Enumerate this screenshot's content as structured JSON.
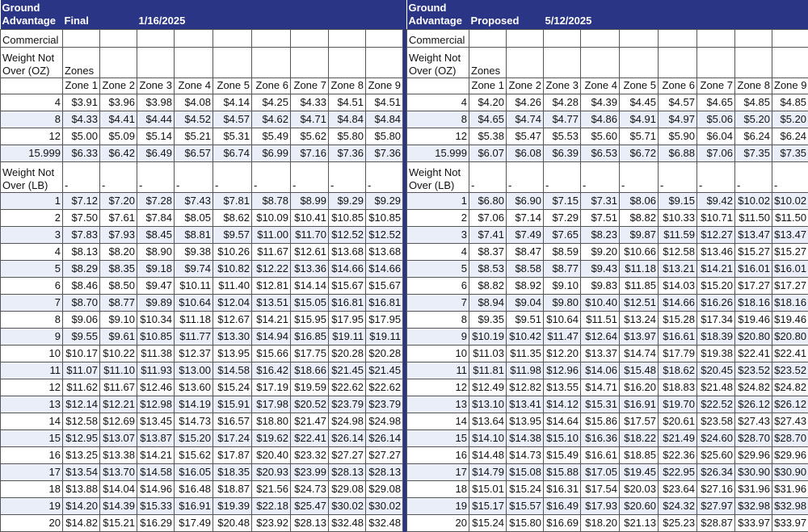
{
  "tables": [
    {
      "title": "Ground Advantage",
      "status": "Final",
      "date": "1/16/2025",
      "commercial": "Commercial",
      "weight_oz_label": "Weight Not Over (OZ)",
      "zones_label": "Zones",
      "zones": [
        "Zone 1",
        "Zone 2",
        "Zone 3",
        "Zone 4",
        "Zone 5",
        "Zone 6",
        "Zone 7",
        "Zone 8",
        "Zone 9"
      ],
      "oz_rows": [
        {
          "weight": 4,
          "prices": [
            "$3.91",
            "$3.96",
            "$3.98",
            "$4.08",
            "$4.14",
            "$4.25",
            "$4.33",
            "$4.51",
            "$4.51"
          ]
        },
        {
          "weight": 8,
          "prices": [
            "$4.33",
            "$4.41",
            "$4.44",
            "$4.52",
            "$4.57",
            "$4.62",
            "$4.71",
            "$4.84",
            "$4.84"
          ]
        },
        {
          "weight": 12,
          "prices": [
            "$5.00",
            "$5.09",
            "$5.14",
            "$5.21",
            "$5.31",
            "$5.49",
            "$5.62",
            "$5.80",
            "$5.80"
          ]
        },
        {
          "weight": 15.999,
          "prices": [
            "$6.33",
            "$6.42",
            "$6.49",
            "$6.57",
            "$6.74",
            "$6.99",
            "$7.16",
            "$7.36",
            "$7.36"
          ]
        }
      ],
      "weight_lb_label": "Weight Not Over (LB)",
      "lb_dashes": [
        "-",
        "-",
        "-",
        "-",
        "-",
        "-",
        "-",
        "-",
        "-"
      ],
      "lb_rows": [
        {
          "weight": 1,
          "prices": [
            "$7.12",
            "$7.20",
            "$7.28",
            "$7.43",
            "$7.81",
            "$8.78",
            "$8.99",
            "$9.29",
            "$9.29"
          ]
        },
        {
          "weight": 2,
          "prices": [
            "$7.50",
            "$7.61",
            "$7.84",
            "$8.05",
            "$8.62",
            "$10.09",
            "$10.41",
            "$10.85",
            "$10.85"
          ]
        },
        {
          "weight": 3,
          "prices": [
            "$7.83",
            "$7.93",
            "$8.45",
            "$8.81",
            "$9.57",
            "$11.00",
            "$11.70",
            "$12.52",
            "$12.52"
          ]
        },
        {
          "weight": 4,
          "prices": [
            "$8.13",
            "$8.20",
            "$8.90",
            "$9.38",
            "$10.26",
            "$11.67",
            "$12.61",
            "$13.68",
            "$13.68"
          ]
        },
        {
          "weight": 5,
          "prices": [
            "$8.29",
            "$8.35",
            "$9.18",
            "$9.74",
            "$10.82",
            "$12.22",
            "$13.36",
            "$14.66",
            "$14.66"
          ]
        },
        {
          "weight": 6,
          "prices": [
            "$8.46",
            "$8.50",
            "$9.47",
            "$10.11",
            "$11.40",
            "$12.81",
            "$14.14",
            "$15.67",
            "$15.67"
          ]
        },
        {
          "weight": 7,
          "prices": [
            "$8.70",
            "$8.77",
            "$9.89",
            "$10.64",
            "$12.04",
            "$13.51",
            "$15.05",
            "$16.81",
            "$16.81"
          ]
        },
        {
          "weight": 8,
          "prices": [
            "$9.06",
            "$9.10",
            "$10.34",
            "$11.18",
            "$12.67",
            "$14.21",
            "$15.95",
            "$17.95",
            "$17.95"
          ]
        },
        {
          "weight": 9,
          "prices": [
            "$9.55",
            "$9.61",
            "$10.85",
            "$11.77",
            "$13.30",
            "$14.94",
            "$16.85",
            "$19.11",
            "$19.11"
          ]
        },
        {
          "weight": 10,
          "prices": [
            "$10.17",
            "$10.22",
            "$11.38",
            "$12.37",
            "$13.95",
            "$15.66",
            "$17.75",
            "$20.28",
            "$20.28"
          ]
        },
        {
          "weight": 11,
          "prices": [
            "$11.07",
            "$11.10",
            "$11.93",
            "$13.00",
            "$14.58",
            "$16.42",
            "$18.66",
            "$21.45",
            "$21.45"
          ]
        },
        {
          "weight": 12,
          "prices": [
            "$11.62",
            "$11.67",
            "$12.46",
            "$13.60",
            "$15.24",
            "$17.19",
            "$19.59",
            "$22.62",
            "$22.62"
          ]
        },
        {
          "weight": 13,
          "prices": [
            "$12.14",
            "$12.21",
            "$12.98",
            "$14.19",
            "$15.91",
            "$17.98",
            "$20.52",
            "$23.79",
            "$23.79"
          ]
        },
        {
          "weight": 14,
          "prices": [
            "$12.58",
            "$12.69",
            "$13.45",
            "$14.73",
            "$16.57",
            "$18.80",
            "$21.47",
            "$24.98",
            "$24.98"
          ]
        },
        {
          "weight": 15,
          "prices": [
            "$12.95",
            "$13.07",
            "$13.87",
            "$15.20",
            "$17.24",
            "$19.62",
            "$22.41",
            "$26.14",
            "$26.14"
          ]
        },
        {
          "weight": 16,
          "prices": [
            "$13.25",
            "$13.38",
            "$14.21",
            "$15.62",
            "$17.87",
            "$20.40",
            "$23.32",
            "$27.27",
            "$27.27"
          ]
        },
        {
          "weight": 17,
          "prices": [
            "$13.54",
            "$13.70",
            "$14.58",
            "$16.05",
            "$18.35",
            "$20.93",
            "$23.99",
            "$28.13",
            "$28.13"
          ]
        },
        {
          "weight": 18,
          "prices": [
            "$13.88",
            "$14.04",
            "$14.96",
            "$16.48",
            "$18.87",
            "$21.56",
            "$24.73",
            "$29.08",
            "$29.08"
          ]
        },
        {
          "weight": 19,
          "prices": [
            "$14.20",
            "$14.39",
            "$15.33",
            "$16.91",
            "$19.39",
            "$22.18",
            "$25.47",
            "$30.02",
            "$30.02"
          ]
        },
        {
          "weight": 20,
          "prices": [
            "$14.82",
            "$15.21",
            "$16.29",
            "$17.49",
            "$20.48",
            "$23.92",
            "$28.13",
            "$32.48",
            "$32.48"
          ]
        }
      ]
    },
    {
      "title": "Ground Advantage",
      "status": "Proposed",
      "date": "5/12/2025",
      "commercial": "Commercial",
      "weight_oz_label": "Weight Not Over (OZ)",
      "zones_label": "Zones",
      "zones": [
        "Zone 1",
        "Zone 2",
        "Zone 3",
        "Zone 4",
        "Zone 5",
        "Zone 6",
        "Zone 7",
        "Zone 8",
        "Zone 9"
      ],
      "oz_rows": [
        {
          "weight": 4,
          "prices": [
            "$4.20",
            "$4.26",
            "$4.28",
            "$4.39",
            "$4.45",
            "$4.57",
            "$4.65",
            "$4.85",
            "$4.85"
          ]
        },
        {
          "weight": 8,
          "prices": [
            "$4.65",
            "$4.74",
            "$4.77",
            "$4.86",
            "$4.91",
            "$4.97",
            "$5.06",
            "$5.20",
            "$5.20"
          ]
        },
        {
          "weight": 12,
          "prices": [
            "$5.38",
            "$5.47",
            "$5.53",
            "$5.60",
            "$5.71",
            "$5.90",
            "$6.04",
            "$6.24",
            "$6.24"
          ]
        },
        {
          "weight": 15.999,
          "prices": [
            "$6.07",
            "$6.08",
            "$6.39",
            "$6.53",
            "$6.72",
            "$6.88",
            "$7.06",
            "$7.35",
            "$7.35"
          ]
        }
      ],
      "weight_lb_label": "Weight Not Over (LB)",
      "lb_dashes": [
        "-",
        "-",
        "-",
        "-",
        "-",
        "-",
        "-",
        "-",
        "-"
      ],
      "lb_rows": [
        {
          "weight": 1,
          "prices": [
            "$6.80",
            "$6.90",
            "$7.15",
            "$7.31",
            "$8.06",
            "$9.15",
            "$9.42",
            "$10.02",
            "$10.02"
          ]
        },
        {
          "weight": 2,
          "prices": [
            "$7.06",
            "$7.14",
            "$7.29",
            "$7.51",
            "$8.82",
            "$10.33",
            "$10.71",
            "$11.50",
            "$11.50"
          ]
        },
        {
          "weight": 3,
          "prices": [
            "$7.41",
            "$7.49",
            "$7.65",
            "$8.23",
            "$9.87",
            "$11.59",
            "$12.27",
            "$13.47",
            "$13.47"
          ]
        },
        {
          "weight": 4,
          "prices": [
            "$8.37",
            "$8.47",
            "$8.59",
            "$9.20",
            "$10.66",
            "$12.58",
            "$13.46",
            "$15.27",
            "$15.27"
          ]
        },
        {
          "weight": 5,
          "prices": [
            "$8.53",
            "$8.58",
            "$8.77",
            "$9.43",
            "$11.18",
            "$13.21",
            "$14.21",
            "$16.01",
            "$16.01"
          ]
        },
        {
          "weight": 6,
          "prices": [
            "$8.82",
            "$8.92",
            "$9.10",
            "$9.83",
            "$11.85",
            "$14.03",
            "$15.20",
            "$17.27",
            "$17.27"
          ]
        },
        {
          "weight": 7,
          "prices": [
            "$8.94",
            "$9.04",
            "$9.80",
            "$10.40",
            "$12.51",
            "$14.66",
            "$16.26",
            "$18.16",
            "$18.16"
          ]
        },
        {
          "weight": 8,
          "prices": [
            "$9.35",
            "$9.51",
            "$10.64",
            "$11.51",
            "$13.24",
            "$15.28",
            "$17.34",
            "$19.46",
            "$19.46"
          ]
        },
        {
          "weight": 9,
          "prices": [
            "$10.19",
            "$10.42",
            "$11.47",
            "$12.64",
            "$13.97",
            "$16.61",
            "$18.39",
            "$20.80",
            "$20.80"
          ]
        },
        {
          "weight": 10,
          "prices": [
            "$11.03",
            "$11.35",
            "$12.20",
            "$13.37",
            "$14.74",
            "$17.79",
            "$19.38",
            "$22.41",
            "$22.41"
          ]
        },
        {
          "weight": 11,
          "prices": [
            "$11.81",
            "$11.98",
            "$12.96",
            "$14.06",
            "$15.48",
            "$18.62",
            "$20.45",
            "$23.52",
            "$23.52"
          ]
        },
        {
          "weight": 12,
          "prices": [
            "$12.49",
            "$12.82",
            "$13.55",
            "$14.71",
            "$16.20",
            "$18.83",
            "$21.48",
            "$24.82",
            "$24.82"
          ]
        },
        {
          "weight": 13,
          "prices": [
            "$13.10",
            "$13.41",
            "$14.12",
            "$15.31",
            "$16.91",
            "$19.70",
            "$22.52",
            "$26.12",
            "$26.12"
          ]
        },
        {
          "weight": 14,
          "prices": [
            "$13.64",
            "$13.95",
            "$14.64",
            "$15.86",
            "$17.57",
            "$20.61",
            "$23.58",
            "$27.43",
            "$27.43"
          ]
        },
        {
          "weight": 15,
          "prices": [
            "$14.10",
            "$14.38",
            "$15.10",
            "$16.36",
            "$18.22",
            "$21.49",
            "$24.60",
            "$28.70",
            "$28.70"
          ]
        },
        {
          "weight": 16,
          "prices": [
            "$14.48",
            "$14.73",
            "$15.49",
            "$16.61",
            "$18.85",
            "$22.36",
            "$25.60",
            "$29.96",
            "$29.96"
          ]
        },
        {
          "weight": 17,
          "prices": [
            "$14.79",
            "$15.08",
            "$15.88",
            "$17.05",
            "$19.45",
            "$22.95",
            "$26.34",
            "$30.90",
            "$30.90"
          ]
        },
        {
          "weight": 18,
          "prices": [
            "$15.01",
            "$15.24",
            "$16.31",
            "$17.54",
            "$20.03",
            "$23.64",
            "$27.16",
            "$31.96",
            "$31.96"
          ]
        },
        {
          "weight": 19,
          "prices": [
            "$15.17",
            "$15.57",
            "$16.49",
            "$17.93",
            "$20.60",
            "$24.32",
            "$27.97",
            "$32.98",
            "$32.98"
          ]
        },
        {
          "weight": 20,
          "prices": [
            "$15.24",
            "$15.80",
            "$16.69",
            "$18.20",
            "$21.13",
            "$25.23",
            "$28.87",
            "$33.97",
            "$33.97"
          ]
        }
      ]
    }
  ]
}
